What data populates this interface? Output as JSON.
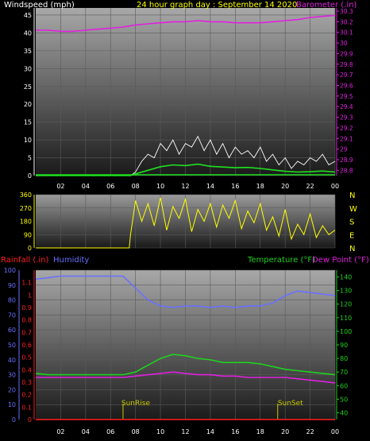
{
  "header": {
    "title": "24 hour graph day : September 14 2020",
    "left_label": "Windspeed (mph)",
    "right_label": "Barometer (.in)"
  },
  "chart_data": [
    {
      "type": "line",
      "name": "wind-barometer",
      "x_ticks": [
        "02",
        "04",
        "06",
        "08",
        "10",
        "12",
        "14",
        "16",
        "18",
        "20",
        "22",
        "00"
      ],
      "left_axis": {
        "label": "Windspeed (mph)",
        "ticks": [
          0,
          5,
          10,
          15,
          20,
          25,
          30,
          35,
          40,
          45
        ],
        "ylim": [
          0,
          47
        ]
      },
      "right_axis": {
        "label": "Barometer (.in)",
        "ticks": [
          "28.8",
          "28.9",
          "29",
          "29.1",
          "29.2",
          "29.3",
          "29.4",
          "29.5",
          "29.6",
          "29.7",
          "29.8",
          "29.9",
          "30",
          "30.1",
          "30.2",
          "30.3"
        ],
        "ylim": [
          28.75,
          30.33
        ]
      },
      "series": [
        {
          "name": "Barometer (.in)",
          "color": "#e020e0",
          "axis": "right",
          "x": [
            0,
            1,
            2,
            3,
            4,
            5,
            6,
            7,
            8,
            9,
            10,
            11,
            12,
            13,
            14,
            15,
            16,
            17,
            18,
            19,
            20,
            21,
            22,
            23,
            24
          ],
          "y": [
            30.12,
            30.12,
            30.11,
            30.11,
            30.12,
            30.13,
            30.14,
            30.15,
            30.17,
            30.18,
            30.19,
            30.2,
            30.2,
            30.21,
            30.2,
            30.2,
            30.19,
            30.19,
            30.19,
            30.2,
            30.21,
            30.22,
            30.24,
            30.25,
            30.26
          ]
        },
        {
          "color": "#ffffff",
          "axis": "left",
          "style": "gust",
          "x": [
            0,
            6,
            7.6,
            8,
            8.5,
            9,
            9.5,
            10,
            10.5,
            11,
            11.5,
            12,
            12.5,
            13,
            13.5,
            14,
            14.5,
            15,
            15.5,
            16,
            16.5,
            17,
            17.5,
            18,
            18.5,
            19,
            19.5,
            20,
            20.5,
            21,
            21.5,
            22,
            22.5,
            23,
            23.5,
            24
          ],
          "y": [
            0,
            0,
            0,
            1,
            4,
            6,
            5,
            9,
            7,
            10,
            6,
            9,
            8,
            11,
            7,
            10,
            6,
            9,
            5,
            8,
            6,
            7,
            5,
            8,
            4,
            6,
            3,
            5,
            2,
            4,
            3,
            5,
            4,
            6,
            3,
            4
          ]
        },
        {
          "color": "#20e020",
          "axis": "left",
          "style": "average",
          "x": [
            0,
            6,
            7.6,
            8,
            9,
            10,
            11,
            12,
            13,
            14,
            15,
            16,
            17,
            18,
            19,
            20,
            21,
            22,
            23,
            24
          ],
          "y": [
            0,
            0,
            0,
            0.5,
            1.5,
            2.5,
            3,
            2.8,
            3.2,
            2.6,
            2.4,
            2.2,
            2.3,
            2,
            1.6,
            1.2,
            1,
            1.1,
            1.3,
            1
          ]
        }
      ]
    },
    {
      "type": "scatter",
      "name": "wind-direction",
      "x_ticks": [],
      "left_axis": {
        "ticks": [
          0,
          90,
          180,
          270,
          360
        ],
        "ylim": [
          0,
          360
        ]
      },
      "right_axis": {
        "ticks": [
          "N",
          "E",
          "S",
          "W",
          "N"
        ]
      },
      "series": [
        {
          "color": "#ffff00",
          "style": "direction",
          "x": [
            0,
            7.5,
            7.6,
            8,
            8.5,
            9,
            9.5,
            10,
            10.5,
            11,
            11.5,
            12,
            12.5,
            13,
            13.5,
            14,
            14.5,
            15,
            15.5,
            16,
            16.5,
            17,
            17.5,
            18,
            18.5,
            19,
            19.5,
            20,
            20.5,
            21,
            21.5,
            22,
            22.5,
            23,
            23.5,
            24
          ],
          "y": [
            0,
            0,
            90,
            320,
            180,
            300,
            150,
            340,
            120,
            280,
            200,
            330,
            110,
            260,
            180,
            300,
            140,
            290,
            200,
            320,
            130,
            250,
            170,
            300,
            120,
            210,
            80,
            260,
            60,
            160,
            90,
            230,
            70,
            150,
            90,
            120
          ]
        }
      ]
    },
    {
      "type": "line",
      "name": "rain-humidity-temperature",
      "labels": {
        "rainfall": "Rainfall (.in)",
        "humidity": "Humidity",
        "temperature": "Temperature (°F)",
        "dewpoint": "Dew Point (°F)"
      },
      "x_ticks": [
        "02",
        "04",
        "06",
        "08",
        "10",
        "12",
        "14",
        "16",
        "18",
        "20",
        "22",
        "00"
      ],
      "rain_axis": {
        "ticks": [
          "0",
          "0.1",
          "0.2",
          "0.3",
          "0.4",
          "0.5",
          "0.6",
          "0.7",
          "0.8",
          "0.9",
          "1",
          "1.1"
        ],
        "ylim": [
          0,
          1.2
        ]
      },
      "humidity_axis": {
        "ticks": [
          0,
          10,
          20,
          30,
          40,
          50,
          60,
          70,
          80,
          90,
          100
        ],
        "ylim": [
          0,
          100
        ]
      },
      "temp_axis": {
        "ticks": [
          40,
          50,
          60,
          70,
          80,
          90,
          100,
          110,
          120,
          130,
          140
        ],
        "ylim": [
          35,
          145
        ]
      },
      "series": [
        {
          "name": "Humidity",
          "color": "#6a70ff",
          "axis": "humidity",
          "x": [
            0,
            1,
            2,
            3,
            4,
            5,
            6,
            7,
            8,
            9,
            10,
            11,
            12,
            13,
            14,
            15,
            16,
            17,
            18,
            19,
            20,
            21,
            22,
            23,
            24
          ],
          "y": [
            94,
            95,
            96,
            96,
            96,
            96,
            96,
            96,
            88,
            80,
            76,
            75,
            76,
            76,
            75,
            76,
            75,
            76,
            76,
            78,
            83,
            86,
            85,
            84,
            83
          ]
        },
        {
          "name": "Temperature (°F)",
          "color": "#20d020",
          "axis": "temp",
          "x": [
            0,
            1,
            2,
            3,
            4,
            5,
            6,
            7,
            8,
            9,
            10,
            11,
            12,
            13,
            14,
            15,
            16,
            17,
            18,
            19,
            20,
            21,
            22,
            23,
            24
          ],
          "y": [
            69,
            68,
            68,
            68,
            68,
            68,
            68,
            68,
            70,
            75,
            80,
            83,
            82,
            80,
            79,
            77,
            77,
            77,
            76,
            74,
            72,
            71,
            70,
            69,
            68
          ]
        },
        {
          "name": "Dew Point (°F)",
          "color": "#e020e0",
          "axis": "temp",
          "x": [
            0,
            1,
            2,
            3,
            4,
            5,
            6,
            7,
            8,
            9,
            10,
            11,
            12,
            13,
            14,
            15,
            16,
            17,
            18,
            19,
            20,
            21,
            22,
            23,
            24
          ],
          "y": [
            66,
            66,
            66,
            66,
            66,
            66,
            66,
            66,
            67,
            68,
            69,
            70,
            69,
            68,
            68,
            67,
            67,
            66,
            66,
            66,
            66,
            65,
            64,
            63,
            62
          ]
        },
        {
          "name": "Rainfall (.in)",
          "color": "#ff2020",
          "axis": "rain",
          "x": [
            0,
            24
          ],
          "y": [
            0,
            0
          ]
        }
      ],
      "annotations": [
        {
          "label": "SunRise",
          "x": 7.0
        },
        {
          "label": "SunSet",
          "x": 19.4
        }
      ]
    }
  ],
  "colors": {
    "wind": "#ffffff",
    "barometer": "#e020e0",
    "direction": "#ffff00",
    "humidity": "#6a70ff",
    "temperature": "#20d020",
    "dewpoint": "#e020e0",
    "rain": "#ff2020",
    "title": "#ffff00",
    "sun": "#c8c800"
  }
}
